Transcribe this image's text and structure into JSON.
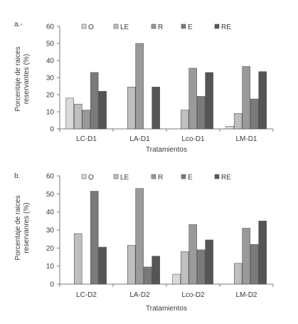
{
  "chart_data": [
    {
      "type": "bar",
      "panel_label": "a.-",
      "ylabel_lines": [
        "Porcentaje de raices",
        "reservantes (%)"
      ],
      "xlabel": "Tratamientos",
      "ylim": [
        0,
        60
      ],
      "yticks": [
        0,
        10,
        20,
        30,
        40,
        50,
        60
      ],
      "grid": false,
      "legend_position": "top",
      "categories": [
        "LC-D1",
        "LA-D1",
        "Lco-D1",
        "LM-D1"
      ],
      "series": [
        {
          "name": "O",
          "color": "#d9d9d9",
          "values": [
            18,
            null,
            null,
            1.5
          ]
        },
        {
          "name": "LE",
          "color": "#bfbfbf",
          "values": [
            14.5,
            24.5,
            11,
            9
          ]
        },
        {
          "name": "R",
          "color": "#9a9a9a",
          "values": [
            11,
            50,
            35.5,
            36.5
          ]
        },
        {
          "name": "E",
          "color": "#7a7a7a",
          "values": [
            33,
            null,
            19,
            17.5
          ]
        },
        {
          "name": "RE",
          "color": "#555555",
          "values": [
            22,
            24.5,
            33,
            33.5
          ]
        }
      ]
    },
    {
      "type": "bar",
      "panel_label": "b.",
      "ylabel_lines": [
        "Porcentaje de raices",
        "reservanres (%)"
      ],
      "xlabel": "Tratamientos",
      "ylim": [
        0,
        60
      ],
      "yticks": [
        0,
        10,
        20,
        30,
        40,
        50,
        60
      ],
      "grid": false,
      "legend_position": "top",
      "categories": [
        "LC-D2",
        "LA-D2",
        "Lco-D2",
        "LM-D2"
      ],
      "series": [
        {
          "name": "O",
          "color": "#d9d9d9",
          "values": [
            null,
            null,
            5.5,
            null
          ]
        },
        {
          "name": "LE",
          "color": "#bfbfbf",
          "values": [
            28,
            21.5,
            18,
            11.5
          ]
        },
        {
          "name": "R",
          "color": "#9a9a9a",
          "values": [
            null,
            53,
            33,
            31
          ]
        },
        {
          "name": "E",
          "color": "#7a7a7a",
          "values": [
            51.5,
            9.5,
            19,
            22
          ]
        },
        {
          "name": "RE",
          "color": "#555555",
          "values": [
            20.5,
            15.5,
            24.5,
            35
          ]
        }
      ]
    }
  ]
}
